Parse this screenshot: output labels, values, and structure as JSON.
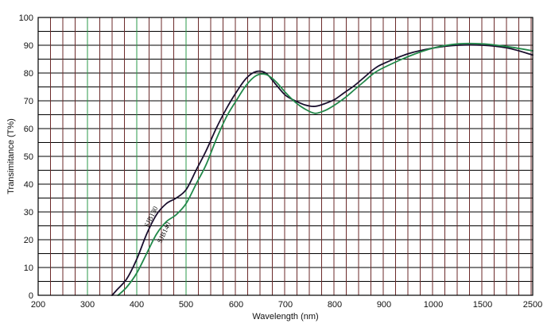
{
  "chart_data": {
    "type": "line",
    "xlabel": "Wavelength (nm)",
    "ylabel": "Transimitance (T%)",
    "ylim": [
      0,
      100
    ],
    "y_ticks": [
      "0",
      "10",
      "20",
      "30",
      "40",
      "50",
      "60",
      "70",
      "80",
      "90",
      "100"
    ],
    "x_ticks": [
      "200",
      "300",
      "400",
      "500",
      "600",
      "700",
      "800",
      "900",
      "1000",
      "1500",
      "2500"
    ],
    "x_scale": "non-linear: 200–1000 nm in 100 nm steps, then 1500 and 2500 nm",
    "grid": true,
    "series": [
      {
        "name": "SJB130",
        "color": "#1a0f2e",
        "points": [
          [
            350,
            0
          ],
          [
            360,
            2
          ],
          [
            380,
            6
          ],
          [
            400,
            13
          ],
          [
            420,
            22
          ],
          [
            440,
            29
          ],
          [
            460,
            33
          ],
          [
            480,
            35
          ],
          [
            500,
            38
          ],
          [
            520,
            45
          ],
          [
            540,
            52
          ],
          [
            560,
            60
          ],
          [
            580,
            67
          ],
          [
            600,
            73
          ],
          [
            620,
            78
          ],
          [
            640,
            80.5
          ],
          [
            660,
            80
          ],
          [
            680,
            76
          ],
          [
            700,
            72
          ],
          [
            720,
            70
          ],
          [
            740,
            68.5
          ],
          [
            760,
            68
          ],
          [
            780,
            69
          ],
          [
            800,
            70.5
          ],
          [
            820,
            73
          ],
          [
            840,
            75.5
          ],
          [
            860,
            78.5
          ],
          [
            880,
            81.5
          ],
          [
            900,
            83.5
          ],
          [
            950,
            87
          ],
          [
            1000,
            89
          ],
          [
            1250,
            90
          ],
          [
            1500,
            90
          ],
          [
            2000,
            89
          ],
          [
            2500,
            86.5
          ]
        ]
      },
      {
        "name": "SJB140",
        "color": "#22884a",
        "points": [
          [
            362,
            0
          ],
          [
            380,
            3
          ],
          [
            400,
            8
          ],
          [
            420,
            15
          ],
          [
            440,
            22
          ],
          [
            460,
            26.5
          ],
          [
            480,
            29
          ],
          [
            500,
            33
          ],
          [
            520,
            40
          ],
          [
            540,
            47
          ],
          [
            560,
            56
          ],
          [
            580,
            64
          ],
          [
            600,
            70
          ],
          [
            620,
            75.5
          ],
          [
            640,
            79
          ],
          [
            660,
            79.5
          ],
          [
            680,
            77
          ],
          [
            700,
            73
          ],
          [
            720,
            69.5
          ],
          [
            740,
            67
          ],
          [
            760,
            65.5
          ],
          [
            780,
            66.5
          ],
          [
            800,
            68.5
          ],
          [
            820,
            71
          ],
          [
            840,
            74
          ],
          [
            860,
            77
          ],
          [
            880,
            80
          ],
          [
            900,
            82
          ],
          [
            950,
            86
          ],
          [
            1000,
            89
          ],
          [
            1250,
            90.5
          ],
          [
            1500,
            90.5
          ],
          [
            2000,
            89.5
          ],
          [
            2500,
            88
          ]
        ]
      }
    ]
  }
}
